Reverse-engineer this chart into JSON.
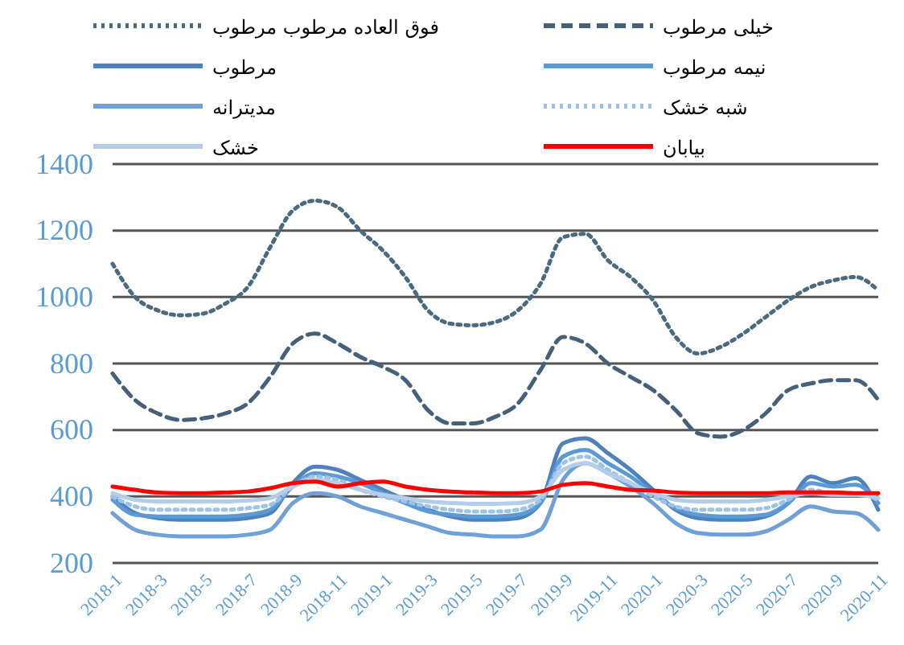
{
  "chart_data": {
    "type": "line",
    "categories": [
      "2018-1",
      null,
      "2018-3",
      null,
      "2018-5",
      null,
      "2018-7",
      null,
      "2018-9",
      null,
      "2018-11",
      null,
      "2019-1",
      null,
      "2019-3",
      null,
      "2019-5",
      null,
      "2019-7",
      null,
      "2019-9",
      null,
      "2019-11",
      null,
      "2020-1",
      null,
      "2020-3",
      null,
      "2020-5",
      null,
      "2020-7",
      null,
      "2020-9",
      null,
      "2020-11"
    ],
    "ylim": [
      200,
      1400
    ],
    "yticks": [
      200,
      400,
      600,
      800,
      1000,
      1200,
      1400
    ],
    "grid": "y",
    "legend": "top",
    "marker": "none",
    "series": [
      {
        "name": "فوق العاده مرطوب مرطوب",
        "color": "#4a6a80",
        "line_style": "dotted",
        "values": [
          1100,
          1000,
          960,
          945,
          950,
          980,
          1030,
          1150,
          1260,
          1290,
          1270,
          1200,
          1140,
          1060,
          960,
          920,
          915,
          925,
          960,
          1040,
          1180,
          1190,
          1110,
          1060,
          990,
          880,
          830,
          850,
          890,
          940,
          990,
          1030,
          1050,
          1060,
          1020
        ]
      },
      {
        "name": "خیلی مرطوب",
        "color": "#44607a",
        "line_style": "dashed",
        "values": [
          770,
          690,
          650,
          630,
          635,
          650,
          680,
          760,
          860,
          890,
          860,
          820,
          790,
          750,
          660,
          620,
          620,
          640,
          680,
          780,
          880,
          860,
          800,
          760,
          720,
          660,
          590,
          580,
          600,
          650,
          720,
          740,
          750,
          750,
          690
        ]
      },
      {
        "name": "مرطوب",
        "color": "#4f81bd",
        "line_style": "solid",
        "values": [
          400,
          350,
          335,
          330,
          330,
          330,
          335,
          350,
          440,
          490,
          480,
          450,
          420,
          390,
          360,
          340,
          330,
          330,
          335,
          380,
          560,
          575,
          530,
          480,
          420,
          360,
          335,
          330,
          330,
          340,
          380,
          460,
          440,
          455,
          360
        ]
      },
      {
        "name": "نیمه مرطوب",
        "color": "#5b9bd5",
        "line_style": "solid",
        "values": [
          390,
          345,
          340,
          340,
          340,
          340,
          345,
          360,
          430,
          470,
          460,
          440,
          410,
          380,
          355,
          345,
          340,
          340,
          345,
          380,
          520,
          540,
          500,
          460,
          410,
          365,
          345,
          340,
          340,
          345,
          380,
          440,
          430,
          435,
          380
        ]
      },
      {
        "name": "مدیترانه",
        "color": "#6fa0d8",
        "line_style": "solid",
        "values": [
          350,
          300,
          285,
          280,
          280,
          280,
          285,
          300,
          380,
          410,
          400,
          370,
          350,
          330,
          310,
          290,
          285,
          280,
          280,
          300,
          450,
          500,
          470,
          430,
          380,
          320,
          290,
          285,
          285,
          295,
          330,
          370,
          355,
          350,
          300
        ]
      },
      {
        "name": "شبه خشک",
        "color": "#9dc3e6",
        "line_style": "dotted",
        "values": [
          400,
          370,
          360,
          360,
          360,
          360,
          365,
          375,
          430,
          460,
          450,
          420,
          400,
          385,
          370,
          360,
          355,
          355,
          360,
          390,
          500,
          520,
          480,
          440,
          400,
          370,
          360,
          360,
          360,
          365,
          390,
          420,
          410,
          410,
          390
        ]
      },
      {
        "name": "خشک",
        "color": "#b4cde8",
        "line_style": "solid",
        "values": [
          410,
          390,
          385,
          385,
          385,
          385,
          388,
          395,
          430,
          450,
          440,
          420,
          405,
          395,
          385,
          380,
          378,
          378,
          380,
          400,
          480,
          500,
          470,
          440,
          410,
          390,
          385,
          385,
          385,
          390,
          400,
          410,
          405,
          405,
          395
        ]
      },
      {
        "name": "بیابان",
        "color": "#ff0000",
        "line_style": "solid",
        "values": [
          430,
          420,
          412,
          410,
          410,
          412,
          415,
          425,
          440,
          445,
          430,
          440,
          445,
          430,
          420,
          415,
          412,
          410,
          410,
          415,
          435,
          440,
          430,
          420,
          418,
          412,
          410,
          410,
          410,
          410,
          412,
          412,
          412,
          410,
          410
        ]
      }
    ]
  }
}
